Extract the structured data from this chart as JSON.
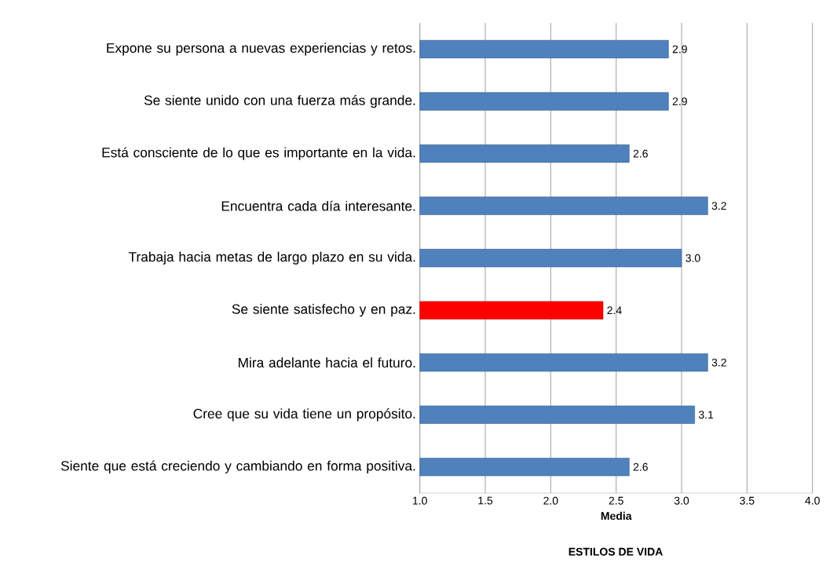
{
  "chart_data": {
    "type": "bar",
    "orientation": "horizontal",
    "title": "ESTILOS DE VIDA",
    "xlabel": "Media",
    "categories": [
      "Expone su persona a nuevas experiencias y retos.",
      "Se siente unido con una fuerza más grande.",
      "Está consciente de lo que es importante en la vida.",
      "Encuentra cada día interesante.",
      "Trabaja hacia metas de largo plazo en su vida.",
      "Se siente satisfecho y en paz.",
      "Mira adelante hacia el futuro.",
      "Cree que su vida tiene un propósito.",
      "Siente que está creciendo y cambiando en forma positiva."
    ],
    "values": [
      2.9,
      2.9,
      2.6,
      3.2,
      3.0,
      2.4,
      3.2,
      3.1,
      2.6
    ],
    "colors": [
      "#4f81bd",
      "#4f81bd",
      "#4f81bd",
      "#4f81bd",
      "#4f81bd",
      "#ff0000",
      "#4f81bd",
      "#4f81bd",
      "#4f81bd"
    ],
    "xlim": [
      1.0,
      4.0
    ],
    "xticks": [
      {
        "value": 1.0,
        "label": "1.0"
      },
      {
        "value": 1.5,
        "label": "1.5"
      },
      {
        "value": 2.0,
        "label": "2.0"
      },
      {
        "value": 2.5,
        "label": "2.5"
      },
      {
        "value": 3.0,
        "label": "3.0"
      },
      {
        "value": 3.5,
        "label": "3.5"
      },
      {
        "value": 4.0,
        "label": "4.0"
      }
    ],
    "value_labels": [
      "2.9",
      "2.9",
      "2.6",
      "3.2",
      "3.0",
      "2.4",
      "3.2",
      "3.1",
      "2.6"
    ],
    "grid": "x"
  }
}
